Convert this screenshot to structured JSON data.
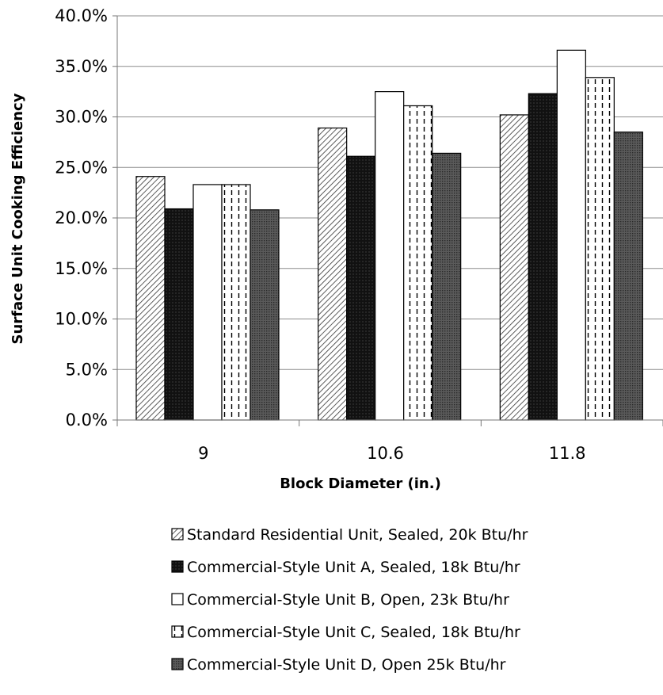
{
  "chart_data": {
    "type": "bar",
    "title": "",
    "xlabel": "Block Diameter (in.)",
    "ylabel": "Surface Unit Cooking Efficiency",
    "categories": [
      "9",
      "10.6",
      "11.8"
    ],
    "ylim": [
      0,
      40
    ],
    "y_ticks": [
      "0.0%",
      "5.0%",
      "10.0%",
      "15.0%",
      "20.0%",
      "25.0%",
      "30.0%",
      "35.0%",
      "40.0%"
    ],
    "grid": "horizontal",
    "legend_position": "bottom",
    "series": [
      {
        "name": "Standard Residential Unit, Sealed, 20k Btu/hr",
        "pattern": "diagonal-hatch",
        "values": [
          24.1,
          28.9,
          30.2
        ]
      },
      {
        "name": "Commercial-Style Unit A, Sealed, 18k Btu/hr",
        "pattern": "dark-grid",
        "values": [
          20.9,
          26.1,
          32.3
        ]
      },
      {
        "name": "Commercial-Style Unit B, Open, 23k Btu/hr",
        "pattern": "white",
        "values": [
          23.3,
          32.5,
          36.6
        ]
      },
      {
        "name": "Commercial-Style Unit C, Sealed, 18k Btu/hr",
        "pattern": "dashed-vertical",
        "values": [
          23.3,
          31.1,
          33.9
        ]
      },
      {
        "name": "Commercial-Style Unit D, Open 25k Btu/hr",
        "pattern": "dark-dots",
        "values": [
          20.8,
          26.4,
          28.5
        ]
      }
    ]
  }
}
